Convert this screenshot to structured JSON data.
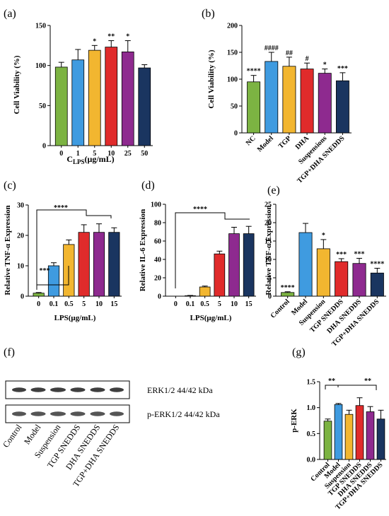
{
  "panels": {
    "a": "(a)",
    "b": "(b)",
    "c": "(c)",
    "d": "(d)",
    "e": "(e)",
    "f": "(f)",
    "g": "(g)"
  },
  "colors": {
    "green": "#7cb342",
    "blue": "#3f9be0",
    "yellow": "#f2b630",
    "red": "#e02b2b",
    "purple": "#8e2a8f",
    "navy": "#1a3560",
    "band": "#2a2a2a"
  },
  "chart_data": [
    {
      "id": "a",
      "type": "bar",
      "categories": [
        "0",
        "1",
        "5",
        "10",
        "25",
        "50"
      ],
      "values": [
        98,
        107,
        119,
        123,
        117,
        97
      ],
      "errors": [
        6,
        13,
        6,
        8,
        14,
        4
      ],
      "colors": [
        "#7cb342",
        "#3f9be0",
        "#f2b630",
        "#e02b2b",
        "#8e2a8f",
        "#1a3560"
      ],
      "sig": [
        "",
        "",
        "*",
        "**",
        "*",
        ""
      ],
      "ylim": [
        0,
        150
      ],
      "yticks": [
        0,
        50,
        100,
        150
      ],
      "ylabel": "Cell Viability (%)",
      "xlabel_main": "C",
      "xlabel_sub": "LPS",
      "xlabel_rest": "(μg/mL)",
      "rotate": false
    },
    {
      "id": "b",
      "type": "bar",
      "categories": [
        "NC",
        "Model",
        "TGP",
        "DHA",
        "Suspensions",
        "TGP+DHA SNEDDS"
      ],
      "values": [
        95,
        133,
        124,
        119,
        111,
        97
      ],
      "errors": [
        12,
        17,
        17,
        11,
        8,
        15
      ],
      "colors": [
        "#7cb342",
        "#3f9be0",
        "#f2b630",
        "#e02b2b",
        "#8e2a8f",
        "#1a3560"
      ],
      "sig": [
        "****",
        "####",
        "##",
        "#",
        "*",
        "***"
      ],
      "ylim": [
        0,
        200
      ],
      "yticks": [
        0,
        50,
        100,
        150,
        200
      ],
      "ylabel": "Cell Viability (%)",
      "rotate": true
    },
    {
      "id": "c",
      "type": "bar",
      "categories": [
        "0",
        "0.1",
        "0.5",
        "5",
        "10",
        "15"
      ],
      "values": [
        1,
        10,
        17,
        21,
        21,
        21
      ],
      "errors": [
        0.2,
        1,
        1.5,
        2.5,
        2.8,
        1.5
      ],
      "colors": [
        "#7cb342",
        "#3f9be0",
        "#f2b630",
        "#e02b2b",
        "#8e2a8f",
        "#1a3560"
      ],
      "ylim": [
        0,
        30
      ],
      "yticks": [
        0,
        10,
        20,
        30
      ],
      "ylabel": "Relative TNF-α Expression",
      "xlabel": "LPS(μg/mL)",
      "rotate": false
    },
    {
      "id": "d",
      "type": "bar",
      "categories": [
        "0",
        "0.1",
        "0.5",
        "5",
        "10",
        "15"
      ],
      "values": [
        0,
        0.5,
        10,
        46,
        68,
        68
      ],
      "errors": [
        0,
        0.3,
        1,
        3,
        7,
        8
      ],
      "colors": [
        "#7cb342",
        "#3f9be0",
        "#f2b630",
        "#e02b2b",
        "#8e2a8f",
        "#1a3560"
      ],
      "ylim": [
        0,
        100
      ],
      "yticks": [
        0,
        20,
        40,
        60,
        80,
        100
      ],
      "ylabel": "Relative IL-6 Expression",
      "xlabel": "LPS(μg/mL)",
      "rotate": false
    },
    {
      "id": "e",
      "type": "bar",
      "categories": [
        "Control",
        "Model",
        "Suspension",
        "TGP SNEDDS",
        "DHA SNEDDS",
        "TGP+DHA SNEDDS"
      ],
      "values": [
        1,
        17.3,
        12.9,
        9.4,
        8.9,
        6.3
      ],
      "errors": [
        0.2,
        2.5,
        2.5,
        0.8,
        1.4,
        1.3
      ],
      "colors": [
        "#7cb342",
        "#3f9be0",
        "#f2b630",
        "#e02b2b",
        "#8e2a8f",
        "#1a3560"
      ],
      "sig": [
        "****",
        "",
        "*",
        "***",
        "***",
        "****"
      ],
      "ylim": [
        0,
        25
      ],
      "yticks": [
        0,
        5,
        10,
        15,
        20,
        25
      ],
      "ylabel": "Relative TNF-α Expression",
      "rotate": true
    },
    {
      "id": "g",
      "type": "bar",
      "categories": [
        "Control",
        "Model",
        "Suspension",
        "TGP SNEDDS",
        "DHA SNEDDS",
        "TGP+DHA SNEDDS"
      ],
      "values": [
        0.74,
        1.06,
        0.87,
        1.04,
        0.92,
        0.78
      ],
      "errors": [
        0.04,
        0.02,
        0.08,
        0.15,
        0.1,
        0.17
      ],
      "colors": [
        "#7cb342",
        "#3f9be0",
        "#f2b630",
        "#e02b2b",
        "#8e2a8f",
        "#1a3560"
      ],
      "ylim": [
        0,
        1.5
      ],
      "yticks": [
        0.0,
        0.5,
        1.0,
        1.5
      ],
      "tickDecimals": 1,
      "ylabel": "p-ERK",
      "rotate": true
    }
  ],
  "annotations": {
    "c_star3": "***",
    "c_star4": "****",
    "d_star4": "****",
    "g_star_left": "**",
    "g_star_right": "**"
  },
  "western_blot": {
    "bands": [
      {
        "label": "ERK1/2  44/42 kDa"
      },
      {
        "label": "p-ERK1/2  44/42 kDa"
      }
    ],
    "lanes": [
      "Control",
      "Model",
      "Suspension",
      "TGP SNEDDS",
      "DHA SNEDDS",
      "TGP+DHA SNEDDS"
    ]
  }
}
